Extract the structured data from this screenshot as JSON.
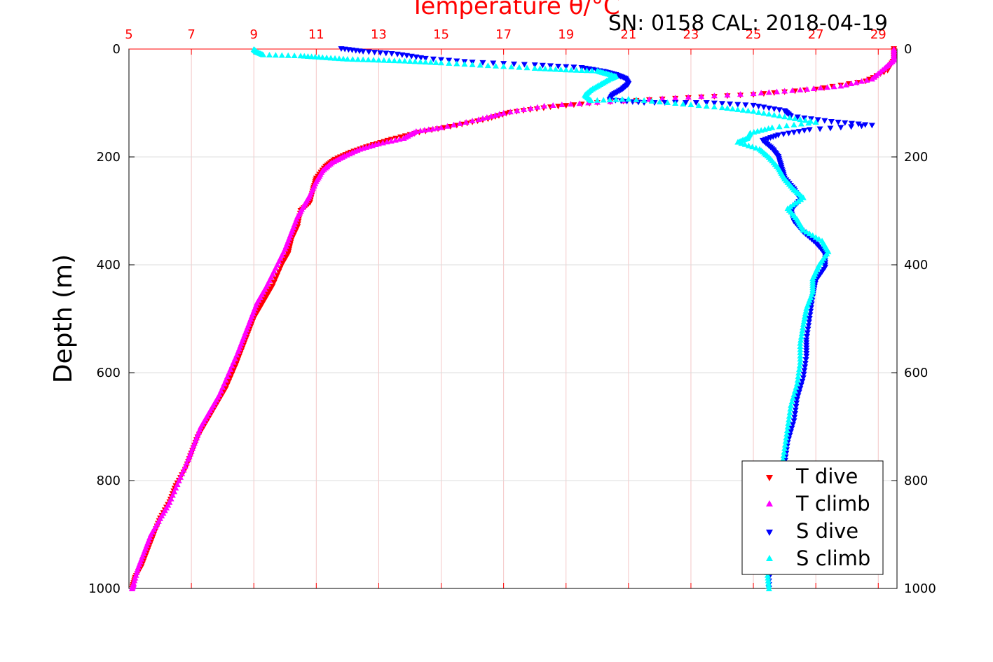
{
  "chart_data": {
    "type": "scatter",
    "title": "Temperature θ/°C",
    "subtitle": "SN: 0158  CAL: 2018-04-19",
    "ylabel": "Depth (m)",
    "xlim": [
      5,
      29.6
    ],
    "ylim": [
      0,
      1000
    ],
    "y_reversed": true,
    "x_ticks": [
      "5",
      "7",
      "9",
      "11",
      "13",
      "15",
      "17",
      "19",
      "21",
      "23",
      "25",
      "27",
      "29"
    ],
    "y_ticks": [
      "0",
      "200",
      "400",
      "600",
      "800",
      "1000"
    ],
    "grid": true,
    "legend_position": "bottom-right",
    "series": [
      {
        "name": "T dive",
        "color": "#ff0000",
        "marker": "triangle-down",
        "points": [
          [
            29.5,
            0
          ],
          [
            29.5,
            20
          ],
          [
            29.3,
            40
          ],
          [
            28.6,
            60
          ],
          [
            27.0,
            75
          ],
          [
            25.0,
            85
          ],
          [
            22.5,
            92
          ],
          [
            20.0,
            100
          ],
          [
            18.5,
            108
          ],
          [
            17.2,
            118
          ],
          [
            16.5,
            130
          ],
          [
            15.5,
            142
          ],
          [
            14.3,
            155
          ],
          [
            13.4,
            168
          ],
          [
            12.7,
            180
          ],
          [
            12.1,
            192
          ],
          [
            11.6,
            205
          ],
          [
            11.3,
            218
          ],
          [
            11.0,
            240
          ],
          [
            10.9,
            260
          ],
          [
            10.8,
            285
          ],
          [
            10.5,
            300
          ],
          [
            10.4,
            330
          ],
          [
            10.2,
            355
          ],
          [
            10.1,
            380
          ],
          [
            9.9,
            400
          ],
          [
            9.6,
            440
          ],
          [
            9.3,
            470
          ],
          [
            9.0,
            500
          ],
          [
            8.8,
            530
          ],
          [
            8.6,
            560
          ],
          [
            8.4,
            590
          ],
          [
            8.1,
            630
          ],
          [
            7.8,
            660
          ],
          [
            7.5,
            690
          ],
          [
            7.2,
            720
          ],
          [
            7.0,
            750
          ],
          [
            6.8,
            780
          ],
          [
            6.5,
            810
          ],
          [
            6.3,
            840
          ],
          [
            6.0,
            870
          ],
          [
            5.8,
            900
          ],
          [
            5.6,
            930
          ],
          [
            5.4,
            960
          ],
          [
            5.2,
            980
          ],
          [
            5.1,
            1000
          ]
        ]
      },
      {
        "name": "T climb",
        "color": "#ff00ff",
        "marker": "triangle-up",
        "points": [
          [
            29.5,
            0
          ],
          [
            29.5,
            20
          ],
          [
            29.2,
            35
          ],
          [
            28.8,
            55
          ],
          [
            27.8,
            68
          ],
          [
            26.5,
            75
          ],
          [
            25.0,
            82
          ],
          [
            22.5,
            90
          ],
          [
            20.0,
            98
          ],
          [
            18.3,
            105
          ],
          [
            17.0,
            118
          ],
          [
            16.2,
            130
          ],
          [
            15.0,
            145
          ],
          [
            14.2,
            152
          ],
          [
            13.8,
            165
          ],
          [
            13.0,
            175
          ],
          [
            12.4,
            185
          ],
          [
            11.9,
            198
          ],
          [
            11.5,
            210
          ],
          [
            11.2,
            225
          ],
          [
            11.0,
            245
          ],
          [
            10.8,
            270
          ],
          [
            10.6,
            290
          ],
          [
            10.4,
            310
          ],
          [
            10.2,
            340
          ],
          [
            10.0,
            370
          ],
          [
            9.7,
            405
          ],
          [
            9.4,
            440
          ],
          [
            9.1,
            470
          ],
          [
            8.9,
            500
          ],
          [
            8.7,
            530
          ],
          [
            8.5,
            560
          ],
          [
            8.2,
            600
          ],
          [
            7.9,
            640
          ],
          [
            7.6,
            670
          ],
          [
            7.3,
            700
          ],
          [
            7.1,
            730
          ],
          [
            6.9,
            760
          ],
          [
            6.6,
            800
          ],
          [
            6.3,
            840
          ],
          [
            6.0,
            870
          ],
          [
            5.7,
            900
          ],
          [
            5.5,
            930
          ],
          [
            5.3,
            960
          ],
          [
            5.15,
            990
          ],
          [
            5.1,
            1000
          ]
        ]
      },
      {
        "name": "S dive",
        "color": "#0000ff",
        "marker": "triangle-down",
        "points": [
          [
            11.8,
            0
          ],
          [
            12.5,
            5
          ],
          [
            13.6,
            10
          ],
          [
            14.5,
            18
          ],
          [
            16.0,
            25
          ],
          [
            18.0,
            30
          ],
          [
            19.5,
            35
          ],
          [
            20.2,
            42
          ],
          [
            20.6,
            48
          ],
          [
            20.9,
            55
          ],
          [
            21.0,
            65
          ],
          [
            20.8,
            75
          ],
          [
            20.5,
            85
          ],
          [
            20.4,
            95
          ],
          [
            21.5,
            100
          ],
          [
            23.5,
            100
          ],
          [
            25.0,
            105
          ],
          [
            26.0,
            115
          ],
          [
            26.2,
            125
          ],
          [
            27.5,
            135
          ],
          [
            28.8,
            142
          ],
          [
            26.8,
            150
          ],
          [
            25.8,
            160
          ],
          [
            25.3,
            170
          ],
          [
            25.6,
            185
          ],
          [
            25.8,
            200
          ],
          [
            25.9,
            220
          ],
          [
            26.0,
            240
          ],
          [
            26.3,
            260
          ],
          [
            26.5,
            280
          ],
          [
            26.2,
            300
          ],
          [
            26.3,
            320
          ],
          [
            26.6,
            340
          ],
          [
            27.0,
            360
          ],
          [
            27.3,
            380
          ],
          [
            27.3,
            405
          ],
          [
            27.0,
            430
          ],
          [
            26.9,
            460
          ],
          [
            26.8,
            500
          ],
          [
            26.7,
            540
          ],
          [
            26.7,
            570
          ],
          [
            26.6,
            610
          ],
          [
            26.4,
            650
          ],
          [
            26.3,
            690
          ],
          [
            26.1,
            730
          ],
          [
            26.0,
            770
          ],
          [
            25.9,
            810
          ],
          [
            25.8,
            850
          ],
          [
            25.7,
            890
          ],
          [
            25.6,
            930
          ],
          [
            25.5,
            960
          ],
          [
            25.5,
            1000
          ]
        ]
      },
      {
        "name": "S climb",
        "color": "#00ffff",
        "marker": "triangle-up",
        "points": [
          [
            9.0,
            0
          ],
          [
            9.1,
            5
          ],
          [
            9.3,
            10
          ],
          [
            10.5,
            12
          ],
          [
            11.2,
            15
          ],
          [
            12.0,
            18
          ],
          [
            13.0,
            20
          ],
          [
            14.0,
            22
          ],
          [
            15.0,
            25
          ],
          [
            16.5,
            30
          ],
          [
            18.0,
            35
          ],
          [
            19.0,
            38
          ],
          [
            20.0,
            40
          ],
          [
            20.3,
            45
          ],
          [
            20.6,
            50
          ],
          [
            20.4,
            55
          ],
          [
            20.1,
            65
          ],
          [
            19.8,
            75
          ],
          [
            19.6,
            85
          ],
          [
            19.8,
            95
          ],
          [
            21.0,
            92
          ],
          [
            22.5,
            100
          ],
          [
            24.0,
            108
          ],
          [
            25.0,
            115
          ],
          [
            26.0,
            125
          ],
          [
            27.0,
            135
          ],
          [
            25.6,
            145
          ],
          [
            24.9,
            155
          ],
          [
            24.8,
            165
          ],
          [
            24.5,
            172
          ],
          [
            25.2,
            185
          ],
          [
            25.5,
            200
          ],
          [
            25.8,
            220
          ],
          [
            26.0,
            240
          ],
          [
            26.3,
            260
          ],
          [
            26.6,
            275
          ],
          [
            26.1,
            295
          ],
          [
            26.4,
            315
          ],
          [
            26.6,
            335
          ],
          [
            27.2,
            355
          ],
          [
            27.4,
            375
          ],
          [
            27.1,
            400
          ],
          [
            26.9,
            425
          ],
          [
            26.9,
            450
          ],
          [
            26.7,
            480
          ],
          [
            26.6,
            510
          ],
          [
            26.5,
            545
          ],
          [
            26.5,
            580
          ],
          [
            26.4,
            620
          ],
          [
            26.2,
            660
          ],
          [
            26.1,
            700
          ],
          [
            26.0,
            740
          ],
          [
            25.9,
            780
          ],
          [
            25.8,
            820
          ],
          [
            25.7,
            860
          ],
          [
            25.6,
            900
          ],
          [
            25.5,
            940
          ],
          [
            25.45,
            970
          ],
          [
            25.5,
            1000
          ]
        ]
      }
    ]
  }
}
